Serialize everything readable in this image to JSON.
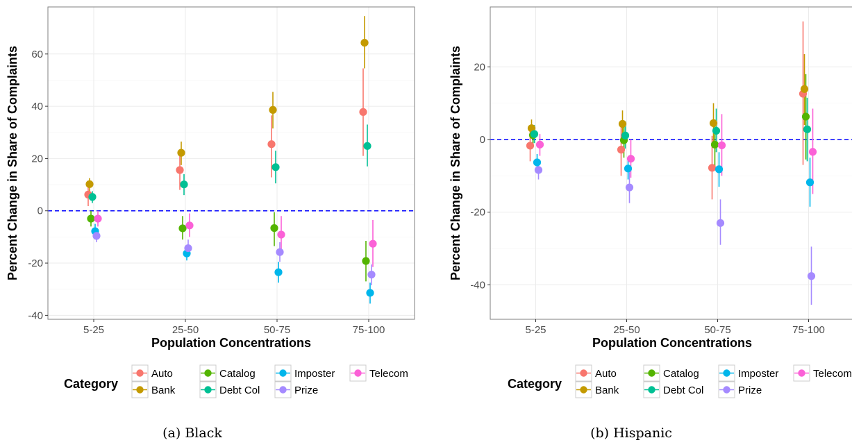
{
  "chart_data": [
    {
      "type": "scatter",
      "caption": "(a) Black",
      "xlabel": "Population Concentrations",
      "ylabel": "Percent Change in Share of Complaints",
      "categories": [
        "5-25",
        "25-50",
        "50-75",
        "75-100"
      ],
      "yticks": [
        -40,
        -20,
        0,
        20,
        40,
        60
      ],
      "ytick_labels": [
        "-40",
        "-20",
        "0",
        "20",
        "40",
        "60"
      ],
      "ylim": [
        -41.5,
        78
      ],
      "reference_line": 0,
      "series": [
        {
          "name": "Auto",
          "values": [
            6.2,
            15.6,
            25.5,
            37.8
          ],
          "lower": [
            1.8,
            8,
            12.8,
            21
          ],
          "upper": [
            10.5,
            22.5,
            36.5,
            54.5
          ]
        },
        {
          "name": "Bank",
          "values": [
            10.2,
            22.2,
            38.6,
            64.3
          ],
          "lower": [
            7.5,
            17.5,
            31.5,
            54.5
          ],
          "upper": [
            12.5,
            26.5,
            45.5,
            74.5
          ]
        },
        {
          "name": "Catalog",
          "values": [
            -3,
            -6.7,
            -6.6,
            -19.2
          ],
          "lower": [
            -6,
            -11,
            -13.5,
            -27
          ],
          "upper": [
            0,
            -2,
            -0.5,
            -11.5
          ]
        },
        {
          "name": "Debt Col",
          "values": [
            5.3,
            10.1,
            16.7,
            24.8
          ],
          "lower": [
            3,
            6,
            10.5,
            17
          ],
          "upper": [
            7.5,
            14,
            23,
            33
          ]
        },
        {
          "name": "Imposter",
          "values": [
            -7.8,
            -16.3,
            -23.5,
            -31.4
          ],
          "lower": [
            -10.5,
            -19,
            -27.5,
            -35.5
          ],
          "upper": [
            -5,
            -13.5,
            -19.5,
            -27.5
          ]
        },
        {
          "name": "Prize",
          "values": [
            -9.6,
            -14.3,
            -15.8,
            -24.4
          ],
          "lower": [
            -12,
            -17,
            -19.5,
            -28.5
          ],
          "upper": [
            -7,
            -11,
            -12,
            -20.5
          ]
        },
        {
          "name": "Telecom",
          "values": [
            -3,
            -5.6,
            -9.1,
            -12.6
          ],
          "lower": [
            -6,
            -10,
            -16.5,
            -21.5
          ],
          "upper": [
            0,
            -1,
            -2,
            -3.5
          ]
        }
      ]
    },
    {
      "type": "scatter",
      "caption": "(b) Hispanic",
      "xlabel": "Population Concentrations",
      "ylabel": "Percent Change in Share of Complaints",
      "categories": [
        "5-25",
        "25-50",
        "50-75",
        "75-100"
      ],
      "yticks": [
        -40,
        -20,
        0,
        20
      ],
      "ytick_labels": [
        "-40",
        "-20",
        "0",
        "20"
      ],
      "ylim": [
        -49.5,
        36.5
      ],
      "reference_line": 0,
      "series": [
        {
          "name": "Auto",
          "values": [
            -1.7,
            -2.8,
            -7.8,
            12.6
          ],
          "lower": [
            -6,
            -10,
            -16.5,
            -7
          ],
          "upper": [
            2.5,
            4.5,
            1,
            32.5
          ]
        },
        {
          "name": "Bank",
          "values": [
            3.1,
            4.3,
            4.5,
            13.9
          ],
          "lower": [
            0.5,
            0.5,
            -1.5,
            4
          ],
          "upper": [
            5.5,
            8,
            10,
            23.5
          ]
        },
        {
          "name": "Catalog",
          "values": [
            1.2,
            -0.2,
            -1.4,
            6.3
          ],
          "lower": [
            -1.5,
            -5,
            -8,
            -5.5
          ],
          "upper": [
            4,
            5,
            5.5,
            18
          ]
        },
        {
          "name": "Debt Col",
          "values": [
            1.5,
            1.1,
            2.4,
            2.8
          ],
          "lower": [
            -1,
            -2.5,
            -3.5,
            -6
          ],
          "upper": [
            4,
            5,
            8.5,
            11.5
          ]
        },
        {
          "name": "Imposter",
          "values": [
            -6.3,
            -8,
            -8.2,
            -11.8
          ],
          "lower": [
            -8.5,
            -11,
            -13,
            -18.5
          ],
          "upper": [
            -4,
            -5,
            -3.5,
            -5
          ]
        },
        {
          "name": "Prize",
          "values": [
            -8.4,
            -13.2,
            -23,
            -37.6
          ],
          "lower": [
            -11,
            -17.5,
            -29,
            -45.5
          ],
          "upper": [
            -5.5,
            -9,
            -16.5,
            -29.5
          ]
        },
        {
          "name": "Telecom",
          "values": [
            -1.4,
            -5.3,
            -1.6,
            -3.4
          ],
          "lower": [
            -4.5,
            -10.5,
            -10,
            -15
          ],
          "upper": [
            1.5,
            0,
            7,
            8.5
          ]
        }
      ]
    }
  ],
  "legend": {
    "title": "Category",
    "items": [
      "Auto",
      "Bank",
      "Catalog",
      "Debt Col",
      "Imposter",
      "Prize",
      "Telecom"
    ]
  },
  "colors": {
    "Auto": "#F8766D",
    "Bank": "#C49A00",
    "Catalog": "#53B400",
    "Debt Col": "#00C094",
    "Imposter": "#00B6EB",
    "Prize": "#A58AFF",
    "Telecom": "#FB61D7",
    "reference_line": "#0000FF",
    "grid": "#ebebeb",
    "panel_border": "#7f7f7f"
  }
}
